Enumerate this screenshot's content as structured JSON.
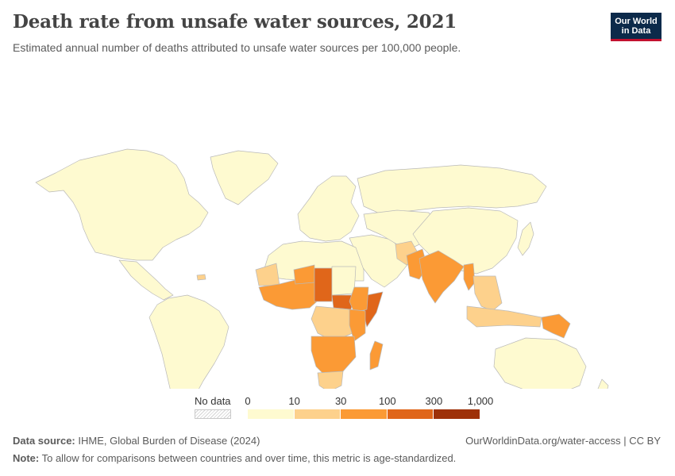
{
  "title": "Death rate from unsafe water sources, 2021",
  "subtitle": "Estimated annual number of deaths attributed to unsafe water sources per 100,000 people.",
  "logo": {
    "line1": "Our World",
    "line2": "in Data"
  },
  "legend": {
    "no_data_label": "No data",
    "ticks": [
      "0",
      "10",
      "30",
      "100",
      "300",
      "1,000"
    ],
    "colors": [
      "#fefad0",
      "#fdd18c",
      "#fb9a35",
      "#e0661a",
      "#9e3108"
    ]
  },
  "colors": {
    "no_data": "#ffffff",
    "border": "#b9b9b9"
  },
  "regions": [
    {
      "name": "North America",
      "bin": 0
    },
    {
      "name": "Greenland",
      "bin": 0
    },
    {
      "name": "Central America",
      "bin": 0
    },
    {
      "name": "Haiti",
      "bin": 1
    },
    {
      "name": "South America",
      "bin": 0
    },
    {
      "name": "Europe",
      "bin": 0
    },
    {
      "name": "Russia",
      "bin": 0
    },
    {
      "name": "Middle East",
      "bin": 0
    },
    {
      "name": "Central Asia",
      "bin": 0
    },
    {
      "name": "China",
      "bin": 0
    },
    {
      "name": "Japan",
      "bin": 0
    },
    {
      "name": "North Africa",
      "bin": 0
    },
    {
      "name": "Mauritania",
      "bin": 1
    },
    {
      "name": "West Africa",
      "bin": 2
    },
    {
      "name": "Niger",
      "bin": 2
    },
    {
      "name": "Chad",
      "bin": 3
    },
    {
      "name": "Sudan",
      "bin": 0
    },
    {
      "name": "South Sudan",
      "bin": 3
    },
    {
      "name": "Somalia",
      "bin": 3
    },
    {
      "name": "Horn of Africa",
      "bin": 2
    },
    {
      "name": "Central Africa",
      "bin": 1
    },
    {
      "name": "East Africa",
      "bin": 2
    },
    {
      "name": "Southern Africa",
      "bin": 2
    },
    {
      "name": "South Africa",
      "bin": 1
    },
    {
      "name": "Madagascar",
      "bin": 2
    },
    {
      "name": "Afghanistan",
      "bin": 1
    },
    {
      "name": "Pakistan",
      "bin": 2
    },
    {
      "name": "India",
      "bin": 2
    },
    {
      "name": "Myanmar",
      "bin": 2
    },
    {
      "name": "Southeast Asia",
      "bin": 1
    },
    {
      "name": "Indonesia",
      "bin": 1
    },
    {
      "name": "Papua New Guinea",
      "bin": 2
    },
    {
      "name": "Australia",
      "bin": 0
    },
    {
      "name": "New Zealand",
      "bin": 0
    }
  ],
  "footer": {
    "source_label": "Data source:",
    "source_text": "IHME, Global Burden of Disease (2024)",
    "url_text": "OurWorldinData.org/water-access | CC BY",
    "note_label": "Note:",
    "note_text": "To allow for comparisons between countries and over time, this metric is age-standardized."
  }
}
